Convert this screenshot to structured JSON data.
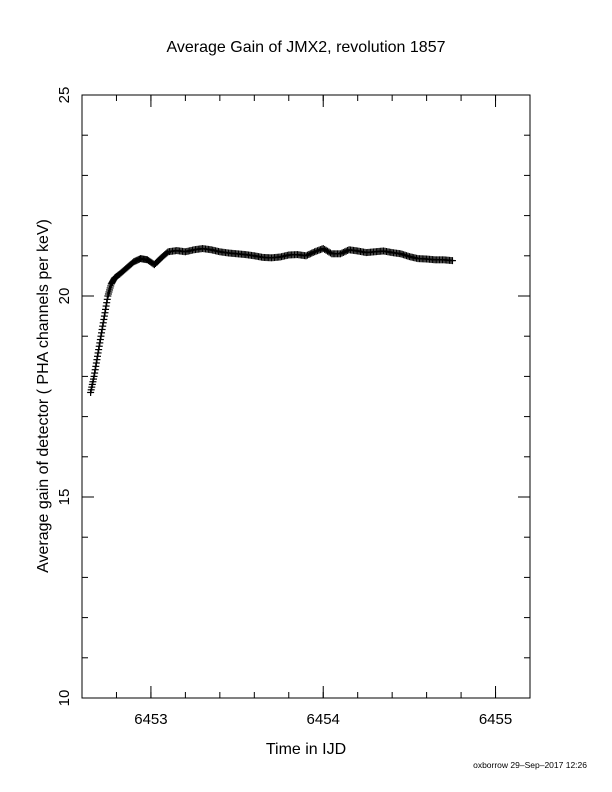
{
  "chart_data": {
    "type": "scatter",
    "title": "Average Gain of JMX2, revolution 1857",
    "xlabel": "Time in IJD",
    "ylabel": "Average gain of detector ( PHA channels per keV)",
    "xlim": [
      6452.6,
      6455.2
    ],
    "ylim": [
      10,
      25
    ],
    "x_major_ticks": [
      6453,
      6454,
      6455
    ],
    "x_tick_labels": [
      "6453",
      "6454",
      "6455"
    ],
    "x_minor_step": 0.2,
    "y_major_ticks": [
      10,
      15,
      20,
      25
    ],
    "y_tick_labels": [
      "10",
      "15",
      "20",
      "25"
    ],
    "y_minor_step": 1,
    "grid": false,
    "marker": "+",
    "color": "#000000",
    "series": [
      {
        "x": [
          6452.65,
          6452.67,
          6452.69,
          6452.71,
          6452.73,
          6452.75,
          6452.77,
          6452.79,
          6452.82,
          6452.86,
          6452.9,
          6452.94,
          6452.98,
          6453.02,
          6453.06,
          6453.1,
          6453.15,
          6453.2,
          6453.25,
          6453.3,
          6453.35,
          6453.4,
          6453.45,
          6453.5,
          6453.55,
          6453.6,
          6453.65,
          6453.7,
          6453.75,
          6453.8,
          6453.85,
          6453.9,
          6453.95,
          6454.0,
          6454.05,
          6454.1,
          6454.15,
          6454.2,
          6454.25,
          6454.3,
          6454.35,
          6454.4,
          6454.45,
          6454.5,
          6454.55,
          6454.6,
          6454.65,
          6454.7,
          6454.75
        ],
        "y": [
          17.6,
          18.0,
          18.5,
          19.0,
          19.5,
          20.0,
          20.3,
          20.45,
          20.55,
          20.7,
          20.85,
          20.93,
          20.9,
          20.78,
          20.95,
          21.1,
          21.13,
          21.1,
          21.15,
          21.18,
          21.15,
          21.1,
          21.07,
          21.05,
          21.03,
          21.0,
          20.96,
          20.95,
          20.97,
          21.02,
          21.03,
          21.0,
          21.1,
          21.18,
          21.05,
          21.05,
          21.15,
          21.12,
          21.08,
          21.1,
          21.12,
          21.08,
          21.05,
          20.98,
          20.93,
          20.92,
          20.9,
          20.9,
          20.88
        ]
      }
    ]
  },
  "footer": {
    "stamp": "oxborrow 29–Sep–2017 12:26"
  }
}
